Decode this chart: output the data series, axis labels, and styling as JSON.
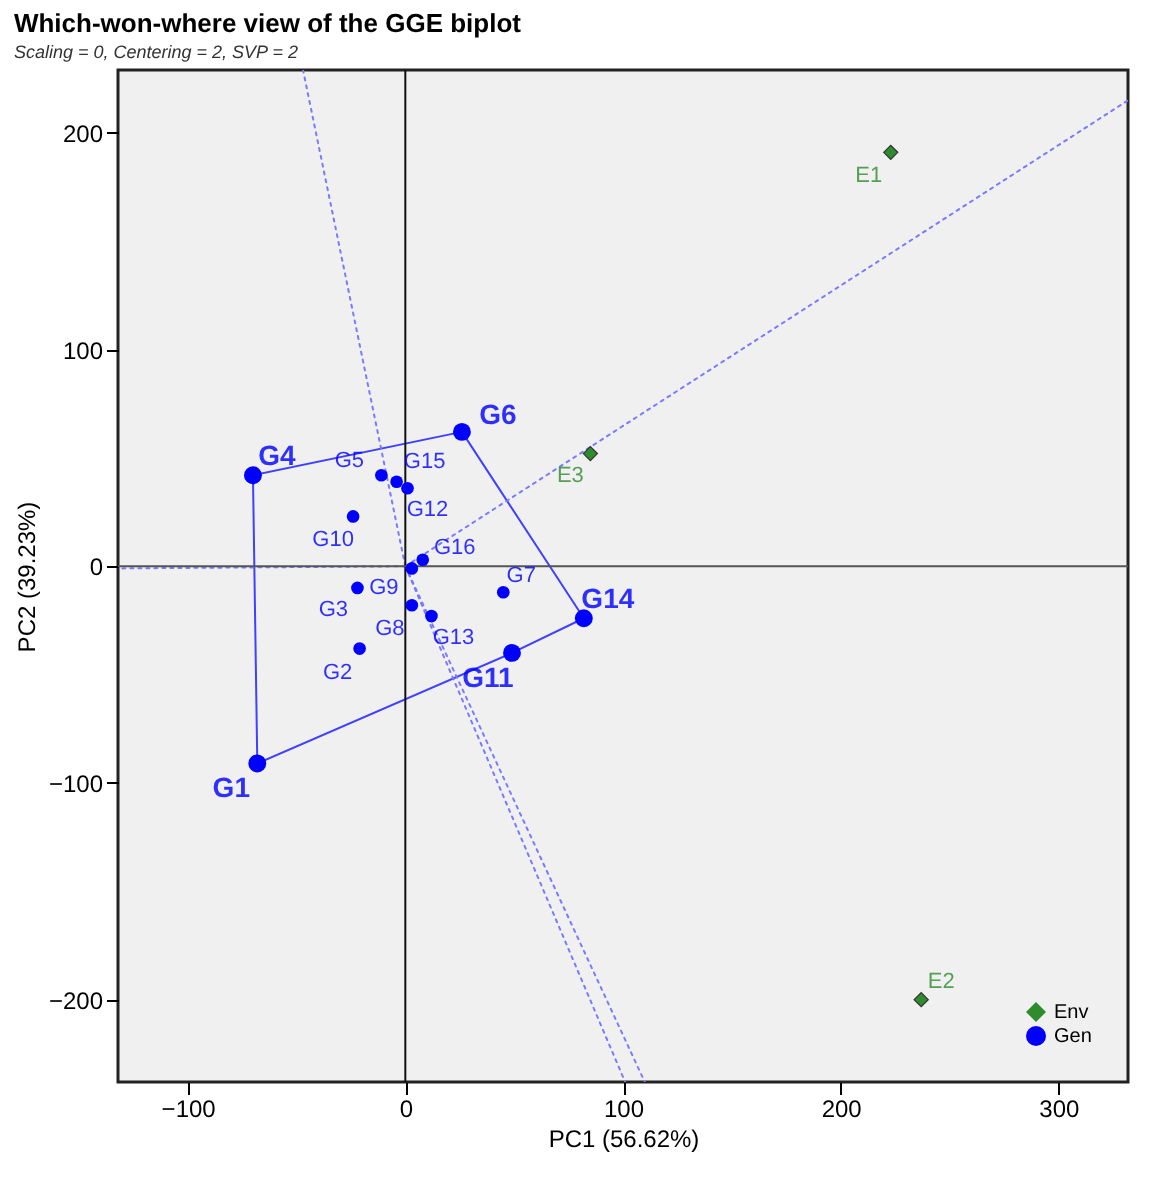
{
  "chart_data": {
    "type": "scatter",
    "title": "Which-won-where view of the GGE biplot",
    "subtitle": "Scaling = 0, Centering = 2, SVP = 2",
    "xlabel": "PC1 (56.62%)",
    "ylabel": "PC2 (39.23%)",
    "xlim": [
      -132,
      332
    ],
    "ylim": [
      -238,
      229
    ],
    "xticks": [
      -100,
      0,
      100,
      200,
      300
    ],
    "yticks": [
      -200,
      -100,
      0,
      100,
      200
    ],
    "legend": "bottom right",
    "ref_lines": [
      {
        "axis": "x",
        "value": 0,
        "color": "#111111"
      },
      {
        "axis": "y",
        "value": 0,
        "color": "#555555"
      }
    ],
    "series": [
      {
        "type": "line",
        "color": "#4040ff",
        "line_style": "solid",
        "x": [
          -70,
          -68
        ],
        "values": [
          42,
          -91
        ]
      },
      {
        "type": "line",
        "color": "#4040ff",
        "line_style": "solid",
        "x": [
          -70,
          26
        ],
        "values": [
          42,
          62
        ]
      },
      {
        "type": "line",
        "color": "#4040ff",
        "line_style": "solid",
        "x": [
          26,
          82
        ],
        "values": [
          62,
          -24
        ]
      },
      {
        "type": "line",
        "color": "#4040ff",
        "line_style": "solid",
        "x": [
          49,
          82
        ],
        "values": [
          -40,
          -24
        ]
      },
      {
        "type": "line",
        "color": "#4040ff",
        "line_style": "solid",
        "x": [
          -68,
          49
        ],
        "values": [
          -91,
          -40
        ]
      },
      {
        "type": "line",
        "color": "#7a7aff",
        "line_style": "dotted",
        "x": [
          0,
          -47
        ],
        "values": [
          0,
          229
        ]
      },
      {
        "type": "line",
        "color": "#7a7aff",
        "line_style": "dotted",
        "x": [
          0,
          332
        ],
        "values": [
          0,
          215
        ]
      },
      {
        "type": "line",
        "color": "#7a7aff",
        "line_style": "dotted",
        "x": [
          0,
          -132
        ],
        "values": [
          0,
          -1
        ]
      },
      {
        "type": "line",
        "color": "#7a7aff",
        "line_style": "dotted",
        "x": [
          0,
          101
        ],
        "values": [
          0,
          -238
        ]
      },
      {
        "type": "line",
        "color": "#7a7aff",
        "line_style": "dotted",
        "x": [
          0,
          110
        ],
        "values": [
          0,
          -238
        ]
      },
      {
        "name": "Env",
        "color": "#2e8b2e",
        "marker": "diamond",
        "x": [
          223,
          237,
          85
        ],
        "values": [
          191,
          -200,
          52
        ],
        "value_labels": [
          "E1",
          "E2",
          "E3"
        ]
      },
      {
        "name": "Gen",
        "color": "#0000ff",
        "marker": "circle",
        "x": [
          -68,
          -70,
          26,
          82,
          49
        ],
        "values": [
          -91,
          42,
          62,
          -24,
          -40
        ],
        "value_labels": [
          "G1",
          "G4",
          "G6",
          "G14",
          "G11"
        ]
      },
      {
        "color": "#0000ff",
        "marker": "circle",
        "x": [
          -11,
          -4,
          1,
          -24,
          8,
          3,
          -22,
          3,
          12,
          45,
          -21
        ],
        "values": [
          42,
          39,
          36,
          23,
          3,
          -1,
          -10,
          -18,
          -23,
          -12,
          -38
        ],
        "value_labels": [
          "G5",
          "G15",
          "G12",
          "G10",
          "G16",
          "G9",
          "G3",
          "G8",
          "G13",
          "G7",
          "G2"
        ]
      }
    ]
  }
}
